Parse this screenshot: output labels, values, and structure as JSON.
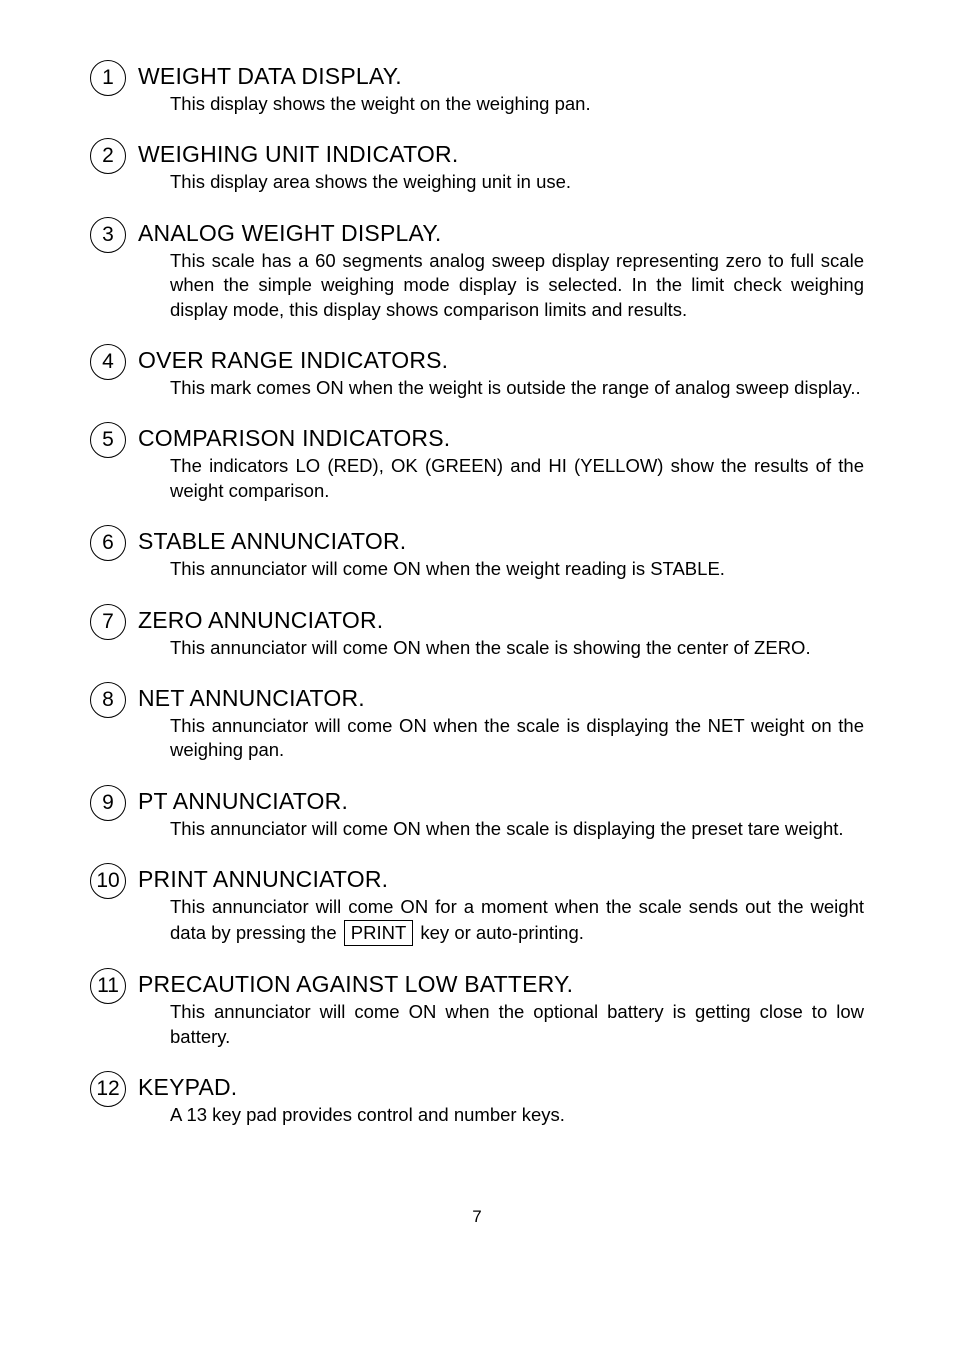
{
  "items": [
    {
      "num": "1",
      "title": "WEIGHT DATA DISPLAY.",
      "desc": "This display shows the weight on the weighing pan."
    },
    {
      "num": "2",
      "title": "WEIGHING UNIT INDICATOR.",
      "desc": "This display area shows the weighing unit in use."
    },
    {
      "num": "3",
      "title": "ANALOG WEIGHT DISPLAY.",
      "desc": "This scale has a 60 segments analog sweep display representing zero to full scale when the simple weighing mode display is selected. In the limit check weighing display mode, this display shows comparison limits and results."
    },
    {
      "num": "4",
      "title": "OVER RANGE INDICATORS.",
      "desc": "This mark comes ON when the weight is outside the range of analog sweep display.."
    },
    {
      "num": "5",
      "title": "COMPARISON INDICATORS.",
      "desc": "The indicators LO (RED), OK (GREEN) and HI (YELLOW) show the results of the weight comparison."
    },
    {
      "num": "6",
      "title": "STABLE ANNUNCIATOR.",
      "desc": "This annunciator will come ON when the weight reading is STABLE."
    },
    {
      "num": "7",
      "title": "ZERO ANNUNCIATOR.",
      "desc": "This annunciator will come ON when the scale is showing the center of ZERO."
    },
    {
      "num": "8",
      "title": "NET ANNUNCIATOR.",
      "desc": "This annunciator will come ON when the scale is displaying the NET weight on the weighing pan."
    },
    {
      "num": "9",
      "title": "PT ANNUNCIATOR.",
      "desc": "This annunciator will come ON when the scale is displaying the preset tare weight."
    },
    {
      "num": "10",
      "title": "PRINT ANNUNCIATOR.",
      "desc_pre": "This annunciator will come ON for a moment when the scale sends out the weight data by pressing the ",
      "key_label": "PRINT",
      "desc_post": " key or auto-printing."
    },
    {
      "num": "11",
      "title": "PRECAUTION AGAINST LOW BATTERY.",
      "desc": "This annunciator will come ON when the optional battery is getting close to low battery."
    },
    {
      "num": "12",
      "title": "KEYPAD.",
      "desc": "A 13 key pad provides control and number keys."
    }
  ],
  "page_number": "7"
}
